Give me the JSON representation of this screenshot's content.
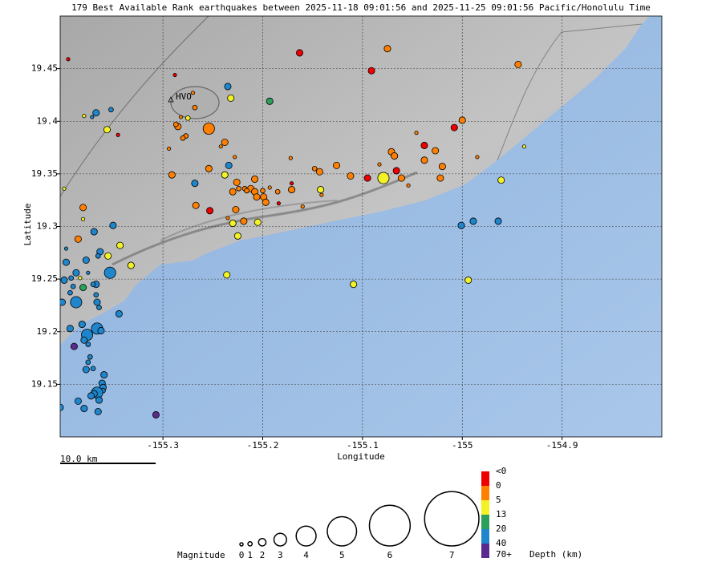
{
  "chart_data": {
    "type": "scatter",
    "title": "179 Best Available Rank earthquakes between 2025-11-18 09:01:56 and 2025-11-25 09:01:56 Pacific/Honolulu Time",
    "x_label": "Longitude",
    "y_label": "Latitude",
    "xlim": [
      -155.403,
      -154.8
    ],
    "ylim": [
      19.1,
      19.5
    ],
    "xticks": [
      -155.3,
      -155.2,
      -155.1,
      -155,
      -154.9
    ],
    "yticks": [
      19.15,
      19.2,
      19.25,
      19.3,
      19.35,
      19.4,
      19.45
    ],
    "grid": true,
    "annotation": "HVO",
    "scale_bar": "10.0 km",
    "magnitude_legend": {
      "label": "Magnitude",
      "values": [
        0,
        1,
        2,
        3,
        4,
        5,
        6,
        7
      ]
    },
    "depth_legend": {
      "label": "Depth (km)",
      "labels": [
        "<0",
        "0",
        "5",
        "13",
        "20",
        "40",
        "70+"
      ],
      "colors": [
        "#ee0000",
        "#ff7f00",
        "#f2f226",
        "#2ca05a",
        "#1f86cc",
        "#5b2a8e"
      ]
    },
    "series": [
      {
        "color": "#ee0000",
        "x": [
          -155.163,
          -155.091,
          -155.395,
          -155.288,
          -155.008,
          -155.038,
          -155.066,
          -155.095,
          -155.253,
          -155.345,
          -155.171,
          -155.184
        ],
        "y": [
          19.465,
          19.448,
          19.459,
          19.444,
          19.394,
          19.377,
          19.353,
          19.346,
          19.315,
          19.387,
          19.341,
          19.322
        ],
        "magnitudes": [
          1.8,
          1.8,
          0.5,
          0.5,
          1.8,
          1.8,
          1.8,
          1.8,
          1.8,
          0.5,
          0.5,
          0.5
        ]
      },
      {
        "color": "#ff7f00",
        "x": [
          -155.075,
          -154.944,
          -155.0,
          -155.254,
          -155.285,
          -155.287,
          -155.268,
          -155.27,
          -155.282,
          -155.277,
          -155.28,
          -155.238,
          -155.242,
          -155.294,
          -155.254,
          -155.291,
          -155.228,
          -155.027,
          -155.071,
          -155.068,
          -155.038,
          -155.02,
          -155.126,
          -155.143,
          -155.148,
          -155.112,
          -155.061,
          -155.022,
          -155.054,
          -155.083,
          -155.226,
          -155.23,
          -155.218,
          -155.208,
          -155.212,
          -155.208,
          -155.206,
          -155.199,
          -155.2,
          -155.197,
          -155.185,
          -155.171,
          -155.267,
          -155.227,
          -155.219,
          -155.235,
          -155.38,
          -155.385,
          -155.16,
          -155.141,
          -155.193,
          -155.172,
          -155.046,
          -154.985,
          -155.224,
          -155.216
        ],
        "y": [
          19.469,
          19.454,
          19.401,
          19.393,
          19.395,
          19.397,
          19.413,
          19.427,
          19.404,
          19.386,
          19.384,
          19.38,
          19.376,
          19.374,
          19.355,
          19.349,
          19.366,
          19.372,
          19.371,
          19.367,
          19.363,
          19.357,
          19.358,
          19.352,
          19.355,
          19.348,
          19.346,
          19.346,
          19.339,
          19.359,
          19.342,
          19.333,
          19.336,
          19.345,
          19.336,
          19.333,
          19.328,
          19.328,
          19.334,
          19.323,
          19.333,
          19.335,
          19.32,
          19.316,
          19.305,
          19.308,
          19.318,
          19.288,
          19.319,
          19.33,
          19.337,
          19.365,
          19.389,
          19.366,
          19.336,
          19.334
        ],
        "magnitudes": [
          1.8,
          1.8,
          1.8,
          2.8,
          1.8,
          1.2,
          1.2,
          0.5,
          0.5,
          1.2,
          1.2,
          1.8,
          0.5,
          0.5,
          1.8,
          1.8,
          0.5,
          1.8,
          1.8,
          1.8,
          1.8,
          1.8,
          1.8,
          1.8,
          1.2,
          1.8,
          1.8,
          1.8,
          0.5,
          0.5,
          1.8,
          1.8,
          1.2,
          1.8,
          1.8,
          1.8,
          1.8,
          1.8,
          1.2,
          1.8,
          1.2,
          1.8,
          1.8,
          1.8,
          1.8,
          0.5,
          1.8,
          1.8,
          0.5,
          0.5,
          0.5,
          0.5,
          0.5,
          0.5,
          1.2,
          1.2
        ]
      },
      {
        "color": "#f2f226",
        "x": [
          -155.232,
          -155.275,
          -155.356,
          -155.238,
          -155.079,
          -155.142,
          -155.205,
          -155.23,
          -155.225,
          -155.343,
          -155.355,
          -155.332,
          -155.38,
          -155.379,
          -155.399,
          -154.961,
          -154.994,
          -155.109,
          -155.236,
          -154.938,
          -155.383
        ],
        "y": [
          19.422,
          19.403,
          19.392,
          19.349,
          19.346,
          19.335,
          19.304,
          19.303,
          19.291,
          19.282,
          19.272,
          19.263,
          19.307,
          19.405,
          19.336,
          19.344,
          19.249,
          19.245,
          19.254,
          19.376,
          19.251
        ],
        "magnitudes": [
          1.8,
          1.2,
          1.8,
          1.8,
          2.8,
          1.8,
          1.8,
          1.8,
          1.8,
          1.8,
          1.8,
          1.8,
          0.5,
          0.5,
          0.5,
          1.8,
          1.8,
          1.8,
          1.8,
          0.5,
          0.5
        ]
      },
      {
        "color": "#2ca05a",
        "x": [
          -155.193,
          -155.38
        ],
        "y": [
          19.419,
          19.242
        ],
        "magnitudes": [
          1.8,
          1.8
        ]
      },
      {
        "color": "#1f86cc",
        "x": [
          -155.235,
          -155.352,
          -155.367,
          -155.371,
          -155.268,
          -155.234,
          -155.35,
          -155.369,
          -155.397,
          -155.363,
          -155.365,
          -155.377,
          -155.397,
          -155.353,
          -155.375,
          -155.387,
          -155.392,
          -155.399,
          -155.39,
          -155.367,
          -155.37,
          -155.367,
          -155.393,
          -155.387,
          -155.401,
          -155.366,
          -155.364,
          -155.344,
          -155.381,
          -155.366,
          -155.362,
          -155.376,
          -155.393,
          -155.379,
          -155.375,
          -155.373,
          -155.375,
          -155.37,
          -155.377,
          -155.359,
          -155.361,
          -155.36,
          -155.36,
          -155.366,
          -155.369,
          -155.372,
          -155.385,
          -155.364,
          -155.379,
          -155.365,
          -155.403,
          -155.001,
          -154.989,
          -154.964
        ],
        "y": [
          19.433,
          19.411,
          19.408,
          19.404,
          19.341,
          19.358,
          19.301,
          19.295,
          19.279,
          19.276,
          19.272,
          19.268,
          19.266,
          19.256,
          19.256,
          19.256,
          19.251,
          19.249,
          19.243,
          19.245,
          19.245,
          19.235,
          19.237,
          19.228,
          19.228,
          19.228,
          19.223,
          19.217,
          19.207,
          19.203,
          19.201,
          19.197,
          19.203,
          19.192,
          19.188,
          19.176,
          19.171,
          19.165,
          19.164,
          19.159,
          19.151,
          19.147,
          19.144,
          19.142,
          19.141,
          19.139,
          19.134,
          19.135,
          19.127,
          19.124,
          19.128,
          19.301,
          19.305,
          19.305
        ],
        "magnitudes": [
          1.8,
          1.2,
          1.8,
          0.5,
          1.8,
          1.8,
          1.8,
          1.8,
          0.5,
          1.8,
          1.2,
          1.8,
          1.8,
          2.8,
          0.5,
          1.8,
          1.2,
          1.8,
          1.2,
          1.8,
          1.2,
          1.2,
          1.2,
          2.8,
          1.8,
          1.8,
          1.2,
          1.8,
          1.8,
          2.8,
          1.8,
          2.8,
          1.8,
          1.8,
          1.2,
          1.2,
          1.2,
          1.2,
          1.8,
          1.8,
          1.8,
          1.8,
          1.2,
          2.8,
          1.8,
          1.8,
          1.8,
          1.8,
          1.8,
          1.8,
          1.8,
          1.8,
          1.8,
          1.8
        ]
      },
      {
        "color": "#5b2a8e",
        "x": [
          -155.389,
          -155.307
        ],
        "y": [
          19.186,
          19.121
        ],
        "magnitudes": [
          1.8,
          1.8
        ]
      }
    ]
  }
}
